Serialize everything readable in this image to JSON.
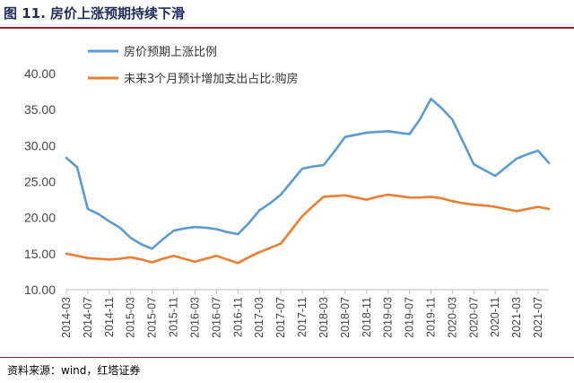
{
  "header": {
    "title": "图 11. 房价上涨预期持续下滑"
  },
  "footer": {
    "source": "资料来源：wind，红塔证券"
  },
  "chart_data": {
    "type": "line",
    "title": "图 11. 房价上涨预期持续下滑",
    "xlabel": "",
    "ylabel": "",
    "ylim": [
      10,
      40
    ],
    "yticks": [
      "10.00",
      "15.00",
      "20.00",
      "25.00",
      "30.00",
      "35.00",
      "40.00"
    ],
    "x_tick_labels": [
      "2014-03",
      "2014-07",
      "2014-11",
      "2015-03",
      "2015-07",
      "2015-11",
      "2016-03",
      "2016-07",
      "2016-11",
      "2017-03",
      "2017-07",
      "2017-11",
      "2018-03",
      "2018-07",
      "2018-11",
      "2019-03",
      "2019-07",
      "2019-11",
      "2020-03",
      "2020-07",
      "2020-11",
      "2021-03",
      "2021-07"
    ],
    "x": [
      "2014-03",
      "2014-05",
      "2014-07",
      "2014-09",
      "2014-11",
      "2015-01",
      "2015-03",
      "2015-05",
      "2015-07",
      "2015-09",
      "2015-11",
      "2016-01",
      "2016-03",
      "2016-05",
      "2016-07",
      "2016-09",
      "2016-11",
      "2017-01",
      "2017-03",
      "2017-05",
      "2017-07",
      "2017-09",
      "2017-11",
      "2018-01",
      "2018-03",
      "2018-05",
      "2018-07",
      "2018-09",
      "2018-11",
      "2019-01",
      "2019-03",
      "2019-05",
      "2019-07",
      "2019-09",
      "2019-11",
      "2020-01",
      "2020-03",
      "2020-05",
      "2020-07",
      "2020-09",
      "2020-11",
      "2021-01",
      "2021-03",
      "2021-05",
      "2021-07",
      "2021-09"
    ],
    "series": [
      {
        "name": "房价预期上涨比例",
        "color": "#5b9bd5",
        "values": [
          28.3,
          27.0,
          21.2,
          20.5,
          19.5,
          18.6,
          17.2,
          16.3,
          15.7,
          17.0,
          18.2,
          18.5,
          18.7,
          18.6,
          18.4,
          18.0,
          17.7,
          19.2,
          21.0,
          22.0,
          23.2,
          25.0,
          26.8,
          27.1,
          27.3,
          29.2,
          31.2,
          31.5,
          31.8,
          31.9,
          32.0,
          31.8,
          31.6,
          33.7,
          36.5,
          35.2,
          33.6,
          30.5,
          27.4,
          26.6,
          25.8,
          27.0,
          28.2,
          28.8,
          29.3,
          27.6
        ]
      },
      {
        "name": "未来3个月预计增加支出占比:购房",
        "color": "#ed7d31",
        "values": [
          15.0,
          14.7,
          14.4,
          14.3,
          14.2,
          14.3,
          14.5,
          14.2,
          13.8,
          14.3,
          14.7,
          14.3,
          13.9,
          14.3,
          14.7,
          14.2,
          13.7,
          14.5,
          15.2,
          15.8,
          16.4,
          18.3,
          20.2,
          21.6,
          22.9,
          23.0,
          23.1,
          22.8,
          22.5,
          22.9,
          23.2,
          23.0,
          22.8,
          22.8,
          22.9,
          22.7,
          22.3,
          22.0,
          21.8,
          21.7,
          21.5,
          21.2,
          20.9,
          21.2,
          21.5,
          21.2
        ]
      }
    ],
    "legend_position": "top-left",
    "grid": false
  }
}
